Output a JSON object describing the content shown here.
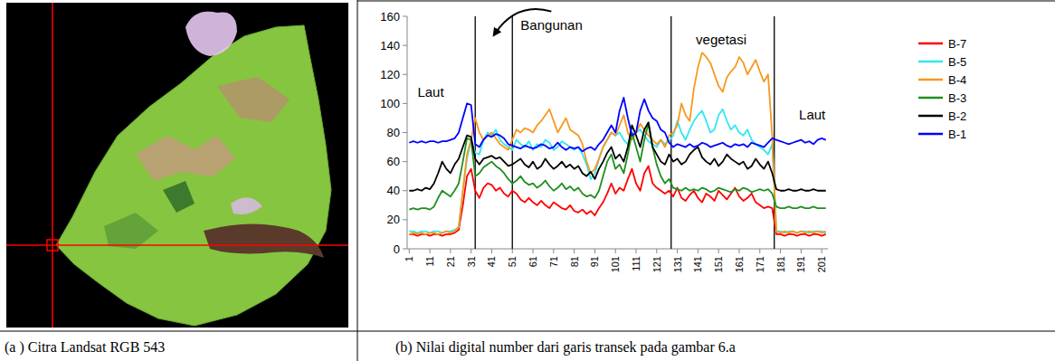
{
  "chart_data": {
    "type": "line",
    "caption": "(b) Nilai digital number dari garis transek pada gambar 6.a",
    "x": [
      1,
      3,
      5,
      7,
      9,
      11,
      13,
      15,
      17,
      19,
      21,
      23,
      25,
      27,
      29,
      31,
      33,
      35,
      37,
      39,
      41,
      43,
      45,
      47,
      49,
      51,
      53,
      55,
      57,
      59,
      61,
      63,
      65,
      67,
      69,
      71,
      73,
      75,
      77,
      79,
      81,
      83,
      85,
      87,
      89,
      91,
      93,
      95,
      97,
      99,
      101,
      103,
      105,
      107,
      109,
      111,
      113,
      115,
      117,
      119,
      121,
      123,
      125,
      127,
      129,
      131,
      133,
      135,
      137,
      139,
      141,
      143,
      145,
      147,
      149,
      151,
      153,
      155,
      157,
      159,
      161,
      163,
      165,
      167,
      169,
      171,
      173,
      175,
      177,
      179,
      181,
      183,
      185,
      187,
      189,
      191,
      193,
      195,
      197,
      199,
      201,
      203
    ],
    "xlim": [
      0,
      204
    ],
    "xticks": [
      1,
      11,
      21,
      31,
      41,
      51,
      61,
      71,
      81,
      91,
      101,
      111,
      121,
      131,
      141,
      151,
      161,
      171,
      181,
      191,
      201
    ],
    "ylim": [
      0,
      160
    ],
    "yticks": [
      0,
      20,
      40,
      60,
      80,
      100,
      120,
      140,
      160
    ],
    "grid": false,
    "legend": "right",
    "vlines": [
      33,
      51,
      128,
      178
    ],
    "annotations": [
      {
        "text": "Laut",
        "x": 5,
        "y": 108
      },
      {
        "text": "Bangunan",
        "x": 55,
        "y": 154
      },
      {
        "text": "vegetasi",
        "x": 140,
        "y": 144
      },
      {
        "text": "Laut",
        "x": 190,
        "y": 92
      }
    ],
    "series": [
      {
        "name": "B-7",
        "color": "#ff0000",
        "values": [
          10,
          10,
          9,
          10,
          10,
          9,
          10,
          10,
          9,
          10,
          10,
          11,
          13,
          30,
          50,
          55,
          40,
          35,
          42,
          45,
          44,
          40,
          42,
          38,
          36,
          40,
          38,
          34,
          32,
          35,
          32,
          30,
          33,
          30,
          28,
          32,
          30,
          28,
          27,
          30,
          26,
          25,
          27,
          24,
          26,
          23,
          28,
          32,
          38,
          45,
          38,
          42,
          40,
          48,
          55,
          45,
          40,
          52,
          57,
          45,
          42,
          40,
          38,
          40,
          36,
          42,
          35,
          33,
          37,
          40,
          35,
          32,
          38,
          36,
          33,
          40,
          37,
          34,
          38,
          42,
          36,
          33,
          35,
          38,
          32,
          30,
          28,
          29,
          28,
          10,
          10,
          9,
          10,
          10,
          9,
          10,
          10,
          9,
          10,
          10,
          9,
          10
        ]
      },
      {
        "name": "B-5",
        "color": "#33e6f2",
        "values": [
          12,
          12,
          11,
          12,
          12,
          11,
          12,
          12,
          11,
          12,
          12,
          13,
          15,
          40,
          62,
          75,
          66,
          65,
          75,
          80,
          78,
          82,
          75,
          72,
          70,
          68,
          75,
          72,
          70,
          74,
          68,
          72,
          70,
          75,
          73,
          68,
          70,
          74,
          72,
          70,
          68,
          70,
          65,
          58,
          48,
          52,
          62,
          70,
          75,
          80,
          78,
          80,
          75,
          72,
          78,
          80,
          82,
          78,
          74,
          72,
          70,
          75,
          72,
          74,
          78,
          88,
          80,
          75,
          82,
          88,
          92,
          95,
          88,
          80,
          82,
          92,
          96,
          88,
          82,
          85,
          80,
          78,
          82,
          75,
          72,
          70,
          68,
          65,
          72,
          12,
          12,
          11,
          12,
          12,
          11,
          12,
          12,
          11,
          12,
          12,
          12,
          11
        ]
      },
      {
        "name": "B-4",
        "color": "#f7991e",
        "values": [
          10,
          11,
          10,
          11,
          10,
          11,
          11,
          10,
          11,
          12,
          11,
          12,
          15,
          40,
          65,
          75,
          90,
          80,
          75,
          78,
          80,
          76,
          72,
          70,
          68,
          75,
          82,
          80,
          83,
          82,
          80,
          85,
          88,
          92,
          96,
          88,
          80,
          85,
          90,
          82,
          80,
          78,
          72,
          60,
          52,
          55,
          62,
          70,
          75,
          80,
          78,
          85,
          92,
          80,
          75,
          80,
          86,
          82,
          78,
          75,
          72,
          75,
          70,
          78,
          80,
          85,
          100,
          92,
          88,
          110,
          125,
          135,
          132,
          128,
          120,
          112,
          108,
          118,
          122,
          125,
          132,
          128,
          120,
          125,
          130,
          122,
          115,
          120,
          78,
          12,
          11,
          12,
          11,
          12,
          11,
          12,
          11,
          12,
          11,
          12,
          11,
          12
        ]
      },
      {
        "name": "B-3",
        "color": "#1f8f1f",
        "values": [
          27,
          28,
          27,
          28,
          28,
          27,
          29,
          35,
          40,
          38,
          36,
          40,
          45,
          60,
          76,
          75,
          50,
          52,
          56,
          58,
          60,
          57,
          55,
          52,
          48,
          45,
          47,
          50,
          46,
          44,
          45,
          42,
          44,
          47,
          43,
          40,
          42,
          45,
          41,
          43,
          40,
          42,
          38,
          36,
          37,
          35,
          40,
          50,
          60,
          65,
          55,
          58,
          52,
          65,
          80,
          70,
          60,
          75,
          86,
          70,
          58,
          50,
          45,
          48,
          42,
          41,
          40,
          42,
          40,
          41,
          40,
          42,
          41,
          39,
          40,
          42,
          41,
          40,
          39,
          41,
          40,
          42,
          41,
          39,
          40,
          41,
          40,
          41,
          38,
          29,
          28,
          28,
          29,
          28,
          28,
          29,
          28,
          28,
          29,
          28,
          28,
          28
        ]
      },
      {
        "name": "B-2",
        "color": "#000000",
        "values": [
          40,
          40,
          41,
          40,
          42,
          41,
          45,
          52,
          60,
          55,
          52,
          58,
          62,
          70,
          78,
          77,
          62,
          58,
          62,
          63,
          64,
          62,
          63,
          60,
          57,
          58,
          60,
          62,
          58,
          56,
          60,
          55,
          57,
          62,
          58,
          55,
          57,
          60,
          56,
          58,
          55,
          57,
          52,
          50,
          53,
          48,
          55,
          60,
          66,
          70,
          62,
          65,
          60,
          70,
          85,
          78,
          70,
          82,
          87,
          70,
          65,
          60,
          58,
          65,
          60,
          62,
          58,
          60,
          65,
          68,
          70,
          63,
          60,
          58,
          62,
          57,
          60,
          65,
          62,
          60,
          58,
          60,
          55,
          57,
          62,
          58,
          55,
          60,
          52,
          41,
          40,
          40,
          41,
          40,
          40,
          41,
          40,
          40,
          41,
          40,
          40,
          40
        ]
      },
      {
        "name": "B-1",
        "color": "#0000ff",
        "values": [
          73,
          74,
          73,
          74,
          73,
          74,
          74,
          73,
          74,
          74,
          75,
          76,
          80,
          90,
          100,
          99,
          72,
          70,
          75,
          78,
          77,
          79,
          78,
          76,
          72,
          71,
          70,
          69,
          71,
          70,
          69,
          70,
          72,
          71,
          69,
          70,
          73,
          70,
          68,
          70,
          69,
          70,
          67,
          69,
          70,
          68,
          72,
          75,
          80,
          85,
          80,
          95,
          104,
          90,
          78,
          80,
          95,
          103,
          95,
          90,
          88,
          82,
          80,
          73,
          70,
          72,
          71,
          70,
          72,
          70,
          71,
          73,
          72,
          70,
          71,
          72,
          73,
          71,
          70,
          72,
          71,
          72,
          70,
          73,
          72,
          71,
          70,
          73,
          76,
          75,
          74,
          73,
          72,
          73,
          74,
          75,
          73,
          74,
          72,
          75,
          76,
          75
        ]
      }
    ]
  },
  "image_panel": {
    "caption": "(a ) Citra Landsat RGB 543"
  }
}
